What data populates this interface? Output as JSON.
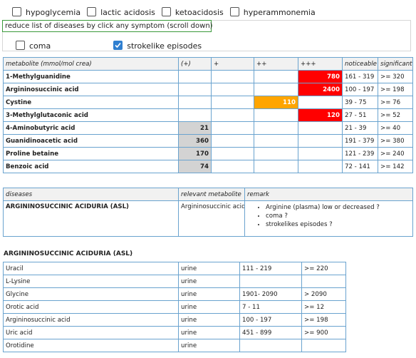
{
  "filters": [
    {
      "label": "hypoglycemia",
      "checked": false
    },
    {
      "label": "lactic acidosis",
      "checked": false
    },
    {
      "label": "ketoacidosis",
      "checked": false
    },
    {
      "label": "hyperammonemia",
      "checked": false
    }
  ],
  "symptom_box": {
    "legend": "reduce list of diseases by click any symptom (scroll down)",
    "options": [
      {
        "label": "coma",
        "checked": false
      },
      {
        "label": "strokelike episodes",
        "checked": true
      }
    ]
  },
  "metabolite_table": {
    "header": [
      "metabolite (mmol/mol crea)",
      "(+)",
      "+",
      "++",
      "+++",
      "noticeable",
      "significant"
    ],
    "rows": [
      [
        "1-Methylguanidine",
        null,
        null,
        null,
        780,
        "161 - 319",
        ">= 320"
      ],
      [
        "Argininosuccinic acid",
        null,
        null,
        null,
        2400,
        "100 - 197",
        ">= 198"
      ],
      [
        "Cystine",
        null,
        null,
        110,
        null,
        "39 - 75",
        ">= 76"
      ],
      [
        "3-Methylglutaconic acid",
        null,
        null,
        null,
        120,
        "27 - 51",
        ">= 52"
      ],
      [
        "4-Aminobutyric acid",
        21,
        null,
        null,
        null,
        "21 - 39",
        ">= 40"
      ],
      [
        "Guanidinoacetic acid",
        360,
        null,
        null,
        null,
        "191 - 379",
        ">= 380"
      ],
      [
        "Proline betaine",
        170,
        null,
        null,
        null,
        "121 - 239",
        ">= 240"
      ],
      [
        "Benzoic acid",
        74,
        null,
        null,
        null,
        "72 - 141",
        ">= 142"
      ]
    ]
  },
  "disease_table": {
    "header": [
      "diseases",
      "relevant metabolite",
      "remark"
    ],
    "rows": [
      {
        "disease": "ARGININOSUCCINIC ACIDURIA (ASL)",
        "metabolite": "Argininosuccinic acid",
        "remarks": [
          "Arginine (plasma) low or decreased ?",
          "coma ?",
          "strokelikes episodes ?"
        ]
      }
    ]
  },
  "detail": {
    "title": "ARGININOSUCCINIC ACIDURIA (ASL)",
    "rows": [
      [
        "Uracil",
        "urine",
        "111 - 219",
        ">= 220"
      ],
      [
        "L-Lysine",
        "urine",
        null,
        null
      ],
      [
        "Glycine",
        "urine",
        "1901- 2090",
        "> 2090"
      ],
      [
        "Orotic acid",
        "urine",
        "7 - 11",
        ">= 12"
      ],
      [
        "Argininosuccinic acid",
        "urine",
        "100 - 197",
        ">= 198"
      ],
      [
        "Uric acid",
        "urine",
        "451 - 899",
        ">= 900"
      ],
      [
        "Orotidine",
        "urine",
        null,
        null
      ]
    ]
  }
}
